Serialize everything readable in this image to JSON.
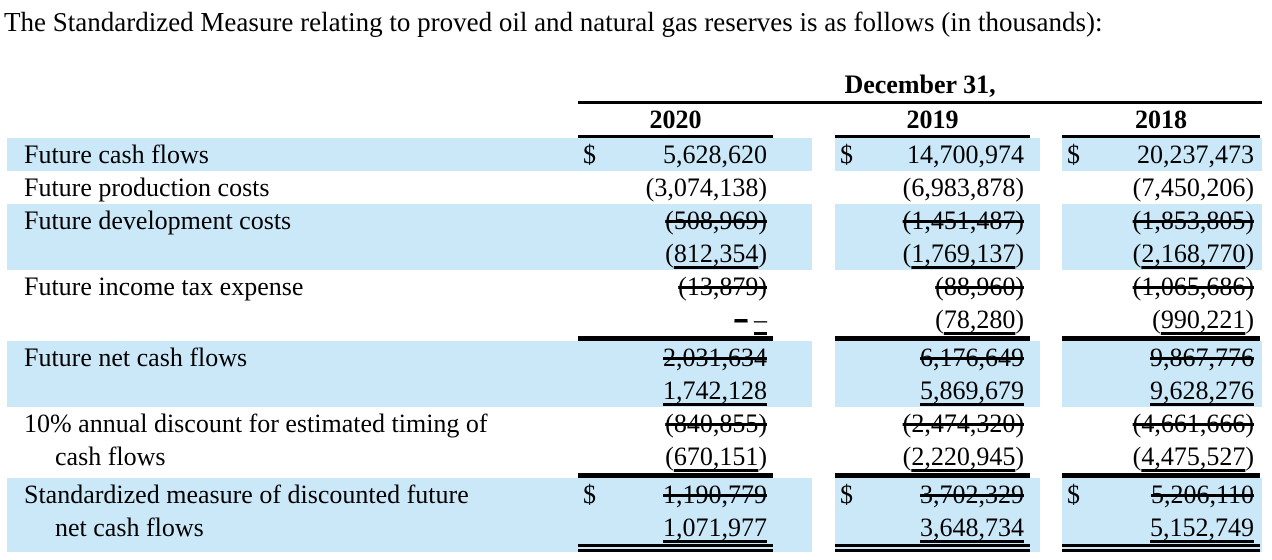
{
  "title": "The Standardized Measure relating to proved oil and natural gas reserves is as follows (in thousands):",
  "colors": {
    "row_highlight": "#cbe8f9",
    "rule": "#000000",
    "text": "#000000"
  },
  "table": {
    "date_header": "December 31,",
    "years": [
      "2020",
      "2019",
      "2018"
    ],
    "rows": [
      {
        "name": "future-cash-flows",
        "label": "Future cash flows",
        "label2": "",
        "highlight": true,
        "rule_bottom": "none",
        "cells": [
          {
            "dollar": "$",
            "lines": [
              [
                {
                  "t": "5,628,620",
                  "s": "plain"
                }
              ]
            ]
          },
          {
            "dollar": "$",
            "lines": [
              [
                {
                  "t": "14,700,974",
                  "s": "plain"
                }
              ]
            ]
          },
          {
            "dollar": "$",
            "lines": [
              [
                {
                  "t": "20,237,473",
                  "s": "plain"
                }
              ]
            ]
          }
        ]
      },
      {
        "name": "future-production-costs",
        "label": "Future production costs",
        "label2": "",
        "highlight": false,
        "rule_bottom": "none",
        "cells": [
          {
            "dollar": "",
            "lines": [
              [
                {
                  "t": "(3,074,138)",
                  "s": "plain"
                }
              ]
            ]
          },
          {
            "dollar": "",
            "lines": [
              [
                {
                  "t": "(6,983,878)",
                  "s": "plain"
                }
              ]
            ]
          },
          {
            "dollar": "",
            "lines": [
              [
                {
                  "t": "(7,450,206)",
                  "s": "plain"
                }
              ]
            ]
          }
        ]
      },
      {
        "name": "future-development-costs",
        "label": "Future development costs",
        "label2": "",
        "highlight": true,
        "rule_bottom": "none",
        "cells": [
          {
            "dollar": "",
            "lines": [
              [
                {
                  "t": "(508,969)",
                  "s": "strike"
                }
              ],
              [
                {
                  "t": "(",
                  "s": "plain"
                },
                {
                  "t": "812,354",
                  "s": "insert"
                },
                {
                  "t": ")",
                  "s": "plain"
                }
              ]
            ]
          },
          {
            "dollar": "",
            "lines": [
              [
                {
                  "t": "(1,451,487)",
                  "s": "strike"
                }
              ],
              [
                {
                  "t": "(",
                  "s": "plain"
                },
                {
                  "t": "1,769,137",
                  "s": "insert"
                },
                {
                  "t": ")",
                  "s": "plain"
                }
              ]
            ]
          },
          {
            "dollar": "",
            "lines": [
              [
                {
                  "t": "(1,853,805)",
                  "s": "strike"
                }
              ],
              [
                {
                  "t": "(",
                  "s": "plain"
                },
                {
                  "t": "2,168,770",
                  "s": "insert"
                },
                {
                  "t": ")",
                  "s": "plain"
                }
              ]
            ]
          }
        ]
      },
      {
        "name": "future-income-tax-expense",
        "label": "Future income tax expense",
        "label2": "",
        "highlight": false,
        "rule_bottom": "thick",
        "cells": [
          {
            "dollar": "",
            "lines": [
              [
                {
                  "t": "(13,879)",
                  "s": "strike"
                }
              ],
              [
                {
                  "t": "–",
                  "s": "strike"
                },
                {
                  "t": " ",
                  "s": "plain"
                },
                {
                  "t": "–",
                  "s": "insert"
                }
              ]
            ]
          },
          {
            "dollar": "",
            "lines": [
              [
                {
                  "t": "(88,960)",
                  "s": "strike"
                }
              ],
              [
                {
                  "t": "(",
                  "s": "plain"
                },
                {
                  "t": "78,280",
                  "s": "insert"
                },
                {
                  "t": ")",
                  "s": "plain"
                }
              ]
            ]
          },
          {
            "dollar": "",
            "lines": [
              [
                {
                  "t": "(1,065,686)",
                  "s": "strike"
                }
              ],
              [
                {
                  "t": "(",
                  "s": "plain"
                },
                {
                  "t": "990,221",
                  "s": "insert"
                },
                {
                  "t": ")",
                  "s": "plain"
                }
              ]
            ]
          }
        ]
      },
      {
        "name": "future-net-cash-flows",
        "label": "Future net cash flows",
        "label2": "",
        "highlight": true,
        "rule_bottom": "none",
        "cells": [
          {
            "dollar": "",
            "lines": [
              [
                {
                  "t": "2,031,634",
                  "s": "strike"
                }
              ],
              [
                {
                  "t": "1,742,128",
                  "s": "insert"
                }
              ]
            ]
          },
          {
            "dollar": "",
            "lines": [
              [
                {
                  "t": "6,176,649",
                  "s": "strike"
                }
              ],
              [
                {
                  "t": "5,869,679",
                  "s": "insert"
                }
              ]
            ]
          },
          {
            "dollar": "",
            "lines": [
              [
                {
                  "t": "9,867,776",
                  "s": "strike"
                }
              ],
              [
                {
                  "t": "9,628,276",
                  "s": "insert"
                }
              ]
            ]
          }
        ]
      },
      {
        "name": "ten-percent-annual-discount",
        "label": "10% annual discount for estimated timing of",
        "label2": "cash flows",
        "highlight": false,
        "rule_bottom": "thick",
        "cells": [
          {
            "dollar": "",
            "lines": [
              [
                {
                  "t": "(840,855)",
                  "s": "strike"
                }
              ],
              [
                {
                  "t": "(",
                  "s": "plain"
                },
                {
                  "t": "670,151",
                  "s": "insert"
                },
                {
                  "t": ")",
                  "s": "plain"
                }
              ]
            ]
          },
          {
            "dollar": "",
            "lines": [
              [
                {
                  "t": "(2,474,320)",
                  "s": "strike"
                }
              ],
              [
                {
                  "t": "(",
                  "s": "plain"
                },
                {
                  "t": "2,220,945",
                  "s": "insert"
                },
                {
                  "t": ")",
                  "s": "plain"
                }
              ]
            ]
          },
          {
            "dollar": "",
            "lines": [
              [
                {
                  "t": "(4,661,666)",
                  "s": "strike"
                }
              ],
              [
                {
                  "t": "(",
                  "s": "plain"
                },
                {
                  "t": "4,475,527",
                  "s": "insert"
                },
                {
                  "t": ")",
                  "s": "plain"
                }
              ]
            ]
          }
        ]
      },
      {
        "name": "standardized-measure-of-discounted-future-net-cash-flows",
        "label": "Standardized measure of discounted future",
        "label2": "net cash flows",
        "highlight": true,
        "rule_bottom": "double",
        "cells": [
          {
            "dollar": "$",
            "lines": [
              [
                {
                  "t": "1,190,779",
                  "s": "strike"
                }
              ],
              [
                {
                  "t": "1,071,977",
                  "s": "insert"
                }
              ]
            ]
          },
          {
            "dollar": "$",
            "lines": [
              [
                {
                  "t": "3,702,329",
                  "s": "strike"
                }
              ],
              [
                {
                  "t": "3,648,734",
                  "s": "insert"
                }
              ]
            ]
          },
          {
            "dollar": "$",
            "lines": [
              [
                {
                  "t": "5,206,110",
                  "s": "strike"
                }
              ],
              [
                {
                  "t": "5,152,749",
                  "s": "insert"
                }
              ]
            ]
          }
        ]
      }
    ]
  }
}
